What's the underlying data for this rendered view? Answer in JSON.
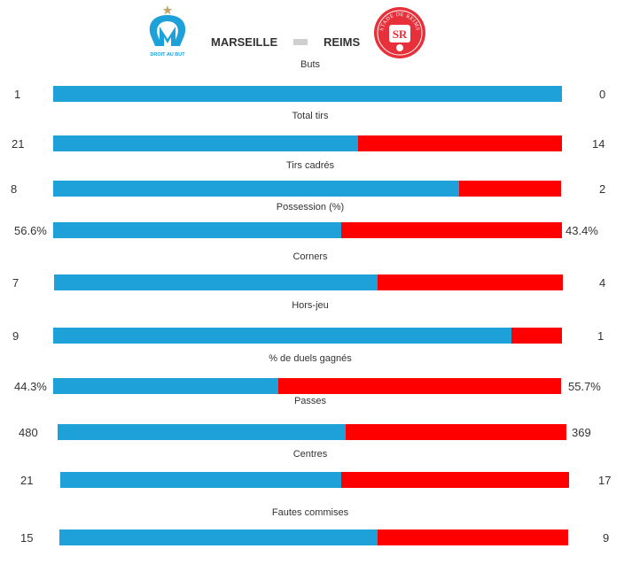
{
  "colors": {
    "home": "#1ea1d9",
    "away": "#ff0000",
    "separator": "#cfcfcf"
  },
  "match": {
    "home_team": "MARSEILLE",
    "away_team": "REIMS",
    "home_logo": {
      "icon": "om-crest-icon",
      "motto": "DROIT AU BUT"
    },
    "away_logo": {
      "icon": "stade-de-reims-crest-icon",
      "ring_text": "STADE DE REIMS",
      "letters": "SR"
    }
  },
  "chart_data": {
    "type": "bar",
    "orientation": "horizontal-stacked-comparison",
    "series": [
      {
        "name": "MARSEILLE",
        "color": "#1ea1d9"
      },
      {
        "name": "REIMS",
        "color": "#ff0000"
      }
    ],
    "categories": [
      "Buts",
      "Total tirs",
      "Tirs cadrés",
      "Possession (%)",
      "Corners",
      "Hors-jeu",
      "% de duels gagnés",
      "Passes",
      "Centres",
      "Fautes commises"
    ],
    "stats": [
      {
        "label": "Buts",
        "home": "1",
        "away": "0",
        "home_value": 1,
        "away_value": 0
      },
      {
        "label": "Total tirs",
        "home": "21",
        "away": "14",
        "home_value": 21,
        "away_value": 14
      },
      {
        "label": "Tirs cadrés",
        "home": "8",
        "away": "2",
        "home_value": 8,
        "away_value": 2
      },
      {
        "label": "Possession (%)",
        "home": "56.6%",
        "away": "43.4%",
        "home_value": 56.6,
        "away_value": 43.4
      },
      {
        "label": "Corners",
        "home": "7",
        "away": "4",
        "home_value": 7,
        "away_value": 4
      },
      {
        "label": "Hors-jeu",
        "home": "9",
        "away": "1",
        "home_value": 9,
        "away_value": 1
      },
      {
        "label": "% de duels gagnés",
        "home": "44.3%",
        "away": "55.7%",
        "home_value": 44.3,
        "away_value": 55.7
      },
      {
        "label": "Passes",
        "home": "480",
        "away": "369",
        "home_value": 480,
        "away_value": 369
      },
      {
        "label": "Centres",
        "home": "21",
        "away": "17",
        "home_value": 21,
        "away_value": 17
      },
      {
        "label": "Fautes commises",
        "home": "15",
        "away": "9",
        "home_value": 15,
        "away_value": 9
      }
    ]
  }
}
